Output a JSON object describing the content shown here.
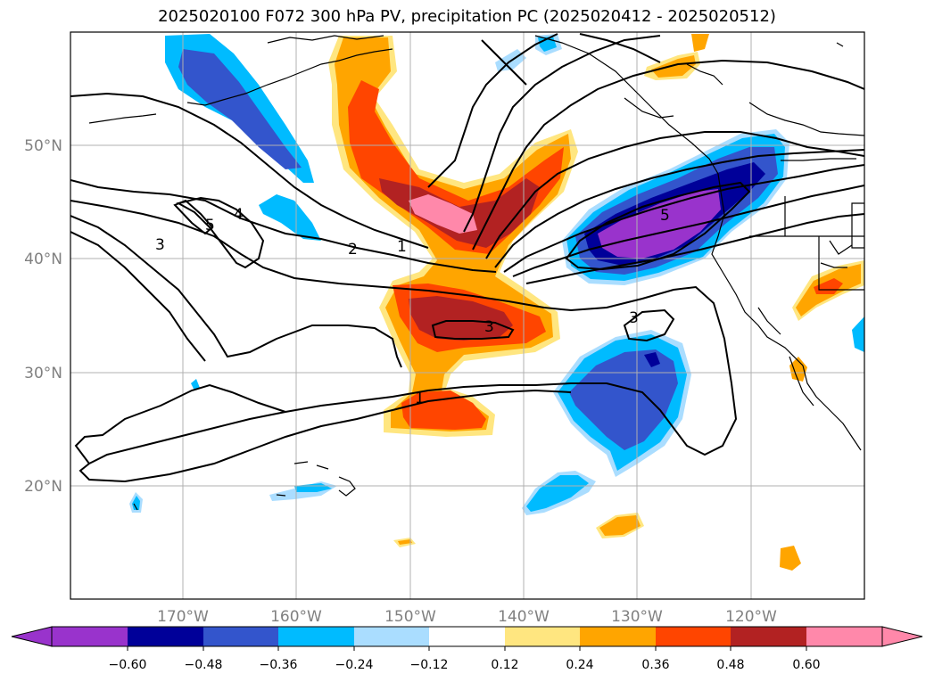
{
  "title": "2025020100 F072 300 hPa PV, precipitation PC (2025020412 - 2025020512)",
  "lat_labels": [
    "50°N",
    "40°N",
    "30°N",
    "20°N"
  ],
  "lon_labels": [
    "170°W",
    "160°W",
    "150°W",
    "140°W",
    "130°W",
    "120°W"
  ],
  "contour_labels": [
    "5",
    "4",
    "3",
    "2",
    "1",
    "3",
    "5",
    "3",
    "1"
  ],
  "colorbar": {
    "ticks": [
      "−0.60",
      "−0.48",
      "−0.36",
      "−0.24",
      "−0.12",
      "0.12",
      "0.24",
      "0.36",
      "0.48",
      "0.60"
    ],
    "colors": [
      "#9933cc",
      "#000099",
      "#3355cc",
      "#00bbff",
      "#aaddff",
      "#ffffff",
      "#ffe680",
      "#ffa500",
      "#ff4500",
      "#b22222",
      "#ff88aa",
      "#ff88aa"
    ]
  },
  "colors": {
    "contour": "#000000",
    "coast": "#000000",
    "grid": "#b0b0b0"
  }
}
